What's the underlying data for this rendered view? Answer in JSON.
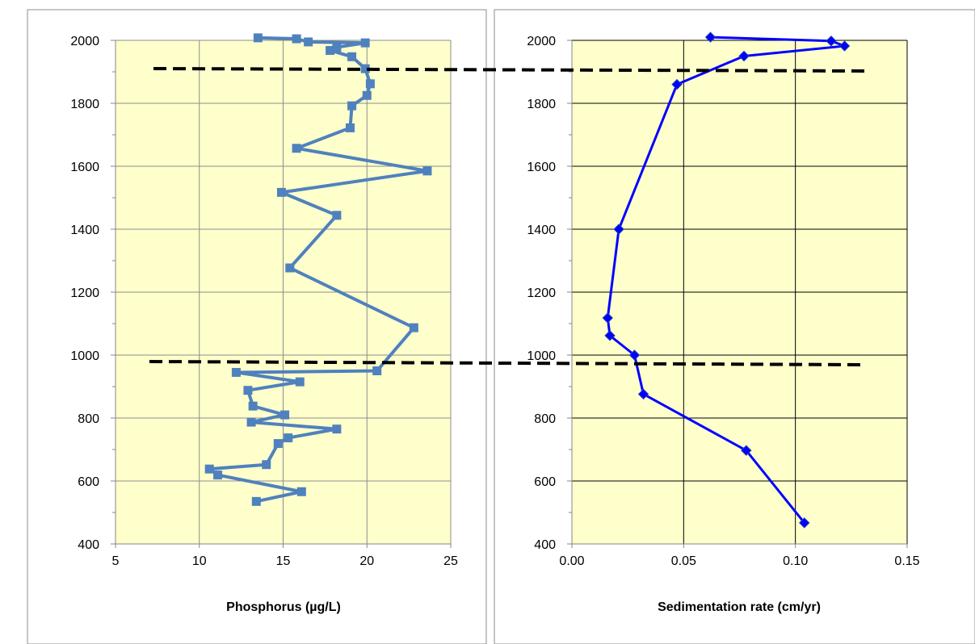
{
  "colors": {
    "plot_background": "#FFFFCC",
    "grid": "#8C8C8C",
    "grid_dark": "#000000",
    "phosphorus_series": "#4F81BD",
    "sedimentation_series": "#0000FF",
    "dashed_line": "#000000"
  },
  "chart_data": [
    {
      "type": "line",
      "marker": "square",
      "xlabel": "Phosphorus (µg/L)",
      "ylabel": "",
      "xlim": [
        5,
        25
      ],
      "ylim": [
        400,
        2000
      ],
      "xticks": [
        5,
        10,
        15,
        20,
        25
      ],
      "yticks": [
        400,
        600,
        800,
        1000,
        1200,
        1400,
        1600,
        1800,
        2000
      ],
      "grid": true,
      "series": [
        {
          "points": [
            [
              13.5,
              2008
            ],
            [
              15.8,
              2005
            ],
            [
              16.5,
              1995
            ],
            [
              19.9,
              1992
            ],
            [
              18.2,
              1978
            ],
            [
              17.8,
              1968
            ],
            [
              19.1,
              1948
            ],
            [
              19.9,
              1910
            ],
            [
              20.2,
              1862
            ],
            [
              20.0,
              1825
            ],
            [
              19.1,
              1792
            ],
            [
              19.0,
              1722
            ],
            [
              15.8,
              1657
            ],
            [
              23.6,
              1585
            ],
            [
              14.9,
              1517
            ],
            [
              18.2,
              1444
            ],
            [
              15.4,
              1277
            ],
            [
              22.8,
              1087
            ],
            [
              20.6,
              950
            ],
            [
              12.2,
              945
            ],
            [
              16.0,
              915
            ],
            [
              12.9,
              888
            ],
            [
              13.2,
              838
            ],
            [
              15.1,
              810
            ],
            [
              13.1,
              787
            ],
            [
              18.2,
              765
            ],
            [
              15.3,
              737
            ],
            [
              14.7,
              719
            ],
            [
              14.0,
              652
            ],
            [
              10.6,
              638
            ],
            [
              11.1,
              619
            ],
            [
              16.1,
              566
            ],
            [
              13.4,
              535
            ]
          ]
        }
      ],
      "reference_lines_y": [
        1910,
        980
      ]
    },
    {
      "type": "line",
      "marker": "diamond",
      "xlabel": "Sedimentation rate (cm/yr)",
      "ylabel": "",
      "xlim": [
        0,
        0.15
      ],
      "ylim": [
        400,
        2000
      ],
      "xticks": [
        "0.00",
        "0.05",
        "0.10",
        "0.15"
      ],
      "yticks": [
        400,
        600,
        800,
        1000,
        1200,
        1400,
        1600,
        1800,
        2000
      ],
      "grid": true,
      "series": [
        {
          "points": [
            [
              0.062,
              2010
            ],
            [
              0.116,
              1998
            ],
            [
              0.122,
              1982
            ],
            [
              0.077,
              1950
            ],
            [
              0.047,
              1860
            ],
            [
              0.021,
              1400
            ],
            [
              0.016,
              1118
            ],
            [
              0.017,
              1062
            ],
            [
              0.028,
              1000
            ],
            [
              0.032,
              876
            ],
            [
              0.078,
              697
            ],
            [
              0.104,
              467
            ]
          ]
        }
      ],
      "reference_lines_y": [
        1910,
        980
      ]
    }
  ]
}
